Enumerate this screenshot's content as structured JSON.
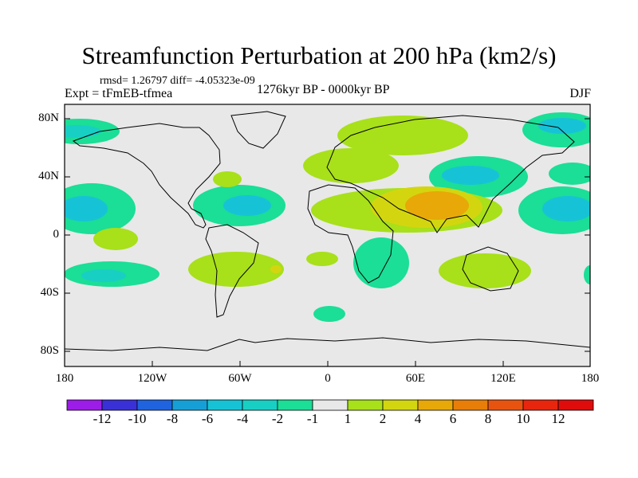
{
  "title": "Streamfunction Perturbation at 200 hPa (km2/s)",
  "stats": "rmsd= 1.26797 diff= -4.05323e-09",
  "experiment": "Expt = tFmEB-tfmea",
  "period": "1276kyr BP - 0000kyr BP",
  "season": "DJF",
  "map": {
    "projection": "cylindrical-equidistant",
    "lon_range": [
      -180,
      180
    ],
    "lat_range": [
      -90,
      90
    ],
    "lat_labels": [
      "80N",
      "40N",
      "0",
      "40S",
      "80S"
    ],
    "lon_labels": [
      "180",
      "120W",
      "60W",
      "0",
      "60E",
      "120E",
      "180"
    ]
  },
  "colorbar": {
    "labels": [
      "-12",
      "-10",
      "-8",
      "-6",
      "-4",
      "-2",
      "-1",
      "1",
      "2",
      "4",
      "6",
      "8",
      "10",
      "12"
    ],
    "colors": [
      "#9c1ce8",
      "#3a30d8",
      "#1f63df",
      "#169fd6",
      "#16c3d6",
      "#18cfc4",
      "#1bde97",
      "#e8e8e8",
      "#a8e01a",
      "#d3d60f",
      "#e8a808",
      "#e87e08",
      "#e85410",
      "#e8260e",
      "#e00c0c"
    ]
  },
  "fill_colors": {
    "background": "#e8e8e8",
    "neg_weak": "#1bde97",
    "neg_mid": "#18cfc4",
    "neg_strong": "#16c3d6",
    "neg_stronger": "#169fd6",
    "pos_weak": "#a8e01a",
    "pos_mid": "#d3d60f",
    "pos_strong": "#e8a808"
  }
}
